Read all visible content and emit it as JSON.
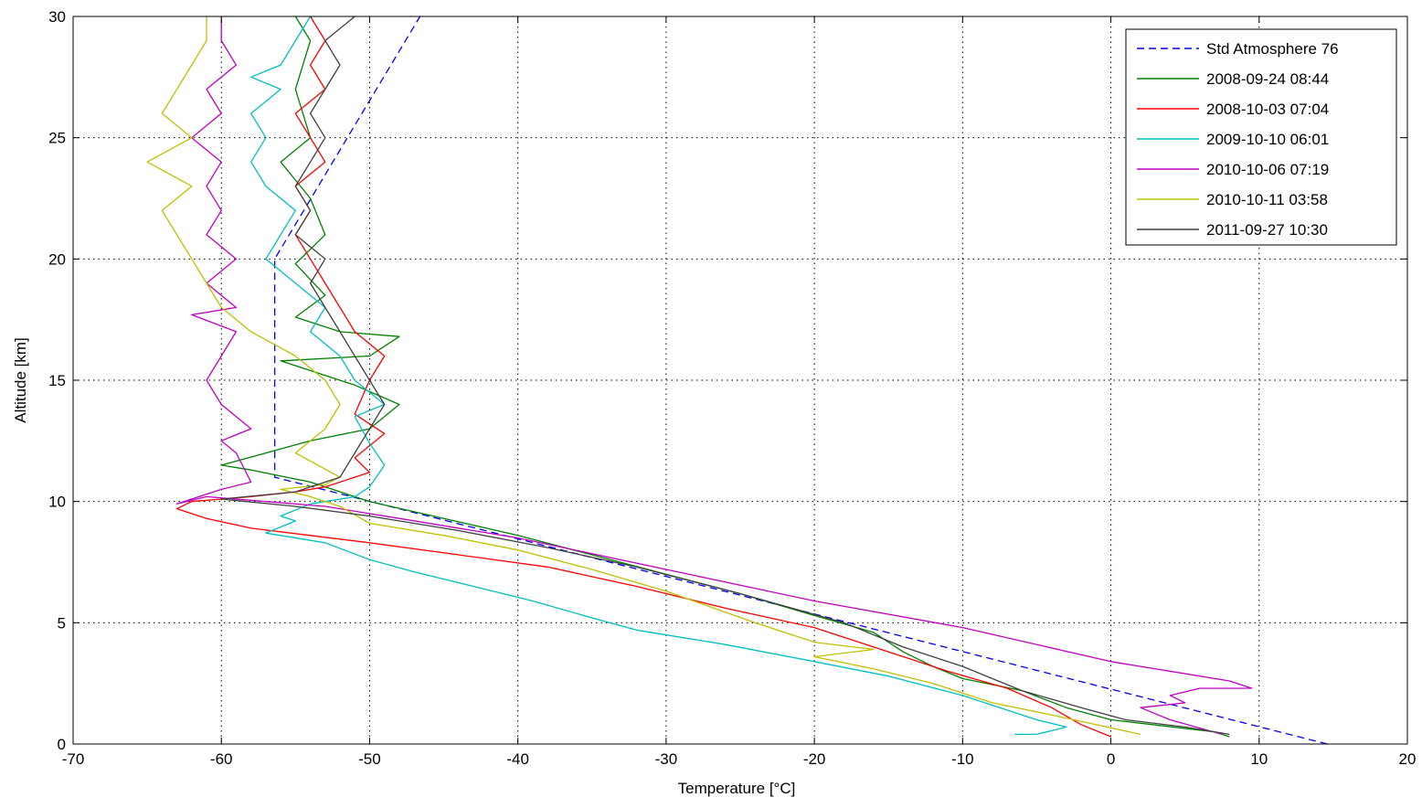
{
  "chart_data": {
    "type": "line",
    "xlabel": "Temperature [°C]",
    "ylabel": "Altitude [km]",
    "xlim": [
      -70,
      20
    ],
    "ylim": [
      0,
      30
    ],
    "xticks": [
      -70,
      -60,
      -50,
      -40,
      -30,
      -20,
      -10,
      0,
      10,
      20
    ],
    "yticks": [
      0,
      5,
      10,
      15,
      20,
      25,
      30
    ],
    "grid": true,
    "legend_position": "top-right",
    "series": [
      {
        "name": "Std Atmosphere 76",
        "color": "#0000ff",
        "dash": true,
        "points": [
          [
            14.6,
            0
          ],
          [
            -56.4,
            11
          ],
          [
            -56.4,
            20
          ],
          [
            -46.6,
            30
          ]
        ]
      },
      {
        "name": "2008-09-24 08:44",
        "color": "#008000",
        "points": [
          [
            8,
            0.3
          ],
          [
            7,
            0.5
          ],
          [
            0,
            1
          ],
          [
            -3,
            1.5
          ],
          [
            -6,
            2.2
          ],
          [
            -10,
            2.7
          ],
          [
            -12,
            3.2
          ],
          [
            -14,
            3.8
          ],
          [
            -16,
            4.6
          ],
          [
            -20,
            5.3
          ],
          [
            -25,
            6.2
          ],
          [
            -30,
            7
          ],
          [
            -35,
            7.8
          ],
          [
            -40,
            8.6
          ],
          [
            -45,
            9.3
          ],
          [
            -50,
            10
          ],
          [
            -54,
            10.8
          ],
          [
            -58,
            11.3
          ],
          [
            -60,
            11.5
          ],
          [
            -57,
            12
          ],
          [
            -54,
            12.5
          ],
          [
            -50,
            13
          ],
          [
            -48,
            14
          ],
          [
            -51,
            14.8
          ],
          [
            -56,
            15.8
          ],
          [
            -50,
            16
          ],
          [
            -48,
            16.8
          ],
          [
            -52,
            17
          ],
          [
            -55,
            17.6
          ],
          [
            -53,
            18.5
          ],
          [
            -55,
            19.8
          ],
          [
            -53,
            21
          ],
          [
            -54,
            22.5
          ],
          [
            -56,
            24
          ],
          [
            -54,
            25
          ],
          [
            -55,
            27
          ],
          [
            -54,
            29
          ],
          [
            -55,
            30
          ]
        ]
      },
      {
        "name": "2008-10-03 07:04",
        "color": "#ff0000",
        "points": [
          [
            0,
            0.3
          ],
          [
            -2,
            0.8
          ],
          [
            -4,
            1.5
          ],
          [
            -7,
            2.3
          ],
          [
            -11,
            3.0
          ],
          [
            -16,
            4.0
          ],
          [
            -20,
            4.8
          ],
          [
            -26,
            5.6
          ],
          [
            -32,
            6.5
          ],
          [
            -38,
            7.3
          ],
          [
            -44,
            7.8
          ],
          [
            -50,
            8.3
          ],
          [
            -54,
            8.6
          ],
          [
            -58,
            8.9
          ],
          [
            -61,
            9.3
          ],
          [
            -63,
            9.7
          ],
          [
            -62,
            10.0
          ],
          [
            -58,
            10.2
          ],
          [
            -55,
            10.4
          ],
          [
            -53,
            10.6
          ],
          [
            -50,
            11.2
          ],
          [
            -51,
            11.8
          ],
          [
            -49,
            12.8
          ],
          [
            -51,
            13.6
          ],
          [
            -50,
            15
          ],
          [
            -49,
            16
          ],
          [
            -51,
            17
          ],
          [
            -52,
            18
          ],
          [
            -53,
            19
          ],
          [
            -54,
            20
          ],
          [
            -55,
            21
          ],
          [
            -54,
            22
          ],
          [
            -55,
            23
          ],
          [
            -53,
            24
          ],
          [
            -54,
            25
          ],
          [
            -55,
            26
          ],
          [
            -53,
            27
          ],
          [
            -54,
            28
          ],
          [
            -53,
            29
          ],
          [
            -54,
            30
          ]
        ]
      },
      {
        "name": "2009-10-10 06:01",
        "color": "#00c0c0",
        "points": [
          [
            -6.5,
            0.4
          ],
          [
            -5,
            0.4
          ],
          [
            -3,
            0.7
          ],
          [
            -5,
            1.0
          ],
          [
            -7,
            1.4
          ],
          [
            -10,
            2.0
          ],
          [
            -15,
            2.8
          ],
          [
            -20,
            3.4
          ],
          [
            -26,
            4.1
          ],
          [
            -32,
            4.7
          ],
          [
            -35,
            5.2
          ],
          [
            -39,
            5.9
          ],
          [
            -43,
            6.5
          ],
          [
            -47,
            7.1
          ],
          [
            -50,
            7.6
          ],
          [
            -53,
            8.3
          ],
          [
            -57,
            8.7
          ],
          [
            -55,
            9.2
          ],
          [
            -56,
            9.4
          ],
          [
            -54,
            9.9
          ],
          [
            -51,
            10.2
          ],
          [
            -50,
            10.6
          ],
          [
            -49,
            11.5
          ],
          [
            -50,
            12.4
          ],
          [
            -51,
            13.5
          ],
          [
            -49,
            14.0
          ],
          [
            -51,
            15.0
          ],
          [
            -52,
            16.0
          ],
          [
            -54,
            17.0
          ],
          [
            -53,
            18.0
          ],
          [
            -55,
            19.0
          ],
          [
            -57,
            20.0
          ],
          [
            -56,
            21.0
          ],
          [
            -55,
            22.0
          ],
          [
            -57,
            23.0
          ],
          [
            -58,
            24.0
          ],
          [
            -57,
            25.0
          ],
          [
            -58,
            26.0
          ],
          [
            -56,
            27.0
          ],
          [
            -58,
            27.5
          ],
          [
            -56,
            28.0
          ],
          [
            -55,
            29.0
          ],
          [
            -54,
            30.0
          ]
        ]
      },
      {
        "name": "2010-10-06 07:19",
        "color": "#c000c0",
        "points": [
          [
            7.5,
            0.4
          ],
          [
            4,
            1.0
          ],
          [
            2,
            1.5
          ],
          [
            5,
            1.7
          ],
          [
            4,
            2.0
          ],
          [
            6,
            2.3
          ],
          [
            9.5,
            2.3
          ],
          [
            8,
            2.6
          ],
          [
            0,
            3.4
          ],
          [
            -10,
            4.8
          ],
          [
            -20,
            5.9
          ],
          [
            -30,
            7.2
          ],
          [
            -40,
            8.5
          ],
          [
            -48,
            9.3
          ],
          [
            -53,
            9.8
          ],
          [
            -57,
            10.0
          ],
          [
            -61,
            10.2
          ],
          [
            -63,
            9.9
          ],
          [
            -60,
            10.5
          ],
          [
            -58,
            10.8
          ],
          [
            -59,
            12.0
          ],
          [
            -60,
            12.5
          ],
          [
            -58,
            13.0
          ],
          [
            -60,
            14.0
          ],
          [
            -61,
            15.0
          ],
          [
            -60,
            16.0
          ],
          [
            -59,
            17.0
          ],
          [
            -62,
            17.7
          ],
          [
            -59,
            18.0
          ],
          [
            -61,
            19.0
          ],
          [
            -59,
            20.0
          ],
          [
            -61,
            21.0
          ],
          [
            -60,
            22.0
          ],
          [
            -61,
            23.0
          ],
          [
            -60,
            24.0
          ],
          [
            -62,
            25.0
          ],
          [
            -60,
            26.0
          ],
          [
            -61,
            27.0
          ],
          [
            -59,
            28.0
          ],
          [
            -60,
            29.0
          ],
          [
            -60,
            30.0
          ]
        ]
      },
      {
        "name": "2010-10-11 03:58",
        "color": "#c0c000",
        "points": [
          [
            2,
            0.4
          ],
          [
            -1,
            0.8
          ],
          [
            -4,
            1.2
          ],
          [
            -8,
            1.7
          ],
          [
            -12,
            2.5
          ],
          [
            -16,
            3.1
          ],
          [
            -20,
            3.6
          ],
          [
            -16,
            3.9
          ],
          [
            -20,
            4.2
          ],
          [
            -24,
            5.0
          ],
          [
            -30,
            6.3
          ],
          [
            -35,
            7.2
          ],
          [
            -40,
            8.0
          ],
          [
            -45,
            8.6
          ],
          [
            -50,
            9.1
          ],
          [
            -52,
            9.8
          ],
          [
            -54,
            10.2
          ],
          [
            -56,
            10.5
          ],
          [
            -53,
            10.7
          ],
          [
            -52,
            11.0
          ],
          [
            -55,
            12.0
          ],
          [
            -53,
            13.0
          ],
          [
            -52,
            14.0
          ],
          [
            -53,
            15.0
          ],
          [
            -55,
            16.0
          ],
          [
            -58,
            17.0
          ],
          [
            -60,
            18.0
          ],
          [
            -61,
            19.0
          ],
          [
            -62,
            20.0
          ],
          [
            -63,
            21.0
          ],
          [
            -64,
            22.0
          ],
          [
            -62,
            23.0
          ],
          [
            -65,
            24.0
          ],
          [
            -62,
            25.0
          ],
          [
            -64,
            26.0
          ],
          [
            -63,
            27.0
          ],
          [
            -62,
            28.0
          ],
          [
            -61,
            29.0
          ],
          [
            -61,
            30.0
          ]
        ]
      },
      {
        "name": "2011-09-27 10:30",
        "color": "#404040",
        "points": [
          [
            8,
            0.4
          ],
          [
            5,
            0.7
          ],
          [
            1,
            1.0
          ],
          [
            -2,
            1.5
          ],
          [
            -6,
            2.2
          ],
          [
            -10,
            3.2
          ],
          [
            -14,
            4.0
          ],
          [
            -18,
            5.0
          ],
          [
            -25,
            6.2
          ],
          [
            -32,
            7.3
          ],
          [
            -38,
            8.1
          ],
          [
            -44,
            8.8
          ],
          [
            -50,
            9.4
          ],
          [
            -55,
            9.8
          ],
          [
            -60,
            10.1
          ],
          [
            -55,
            10.4
          ],
          [
            -52,
            11.0
          ],
          [
            -51,
            12.0
          ],
          [
            -50,
            13.0
          ],
          [
            -49,
            14.0
          ],
          [
            -50,
            15.0
          ],
          [
            -51,
            16.0
          ],
          [
            -52,
            17.0
          ],
          [
            -53,
            18.0
          ],
          [
            -54,
            19.0
          ],
          [
            -53,
            20.0
          ],
          [
            -55,
            21.0
          ],
          [
            -54,
            22.0
          ],
          [
            -55,
            23.0
          ],
          [
            -54,
            24.0
          ],
          [
            -53,
            25.0
          ],
          [
            -54,
            26.0
          ],
          [
            -53,
            27.0
          ],
          [
            -52,
            28.0
          ],
          [
            -53,
            29.0
          ],
          [
            -51,
            30.0
          ]
        ]
      }
    ]
  }
}
